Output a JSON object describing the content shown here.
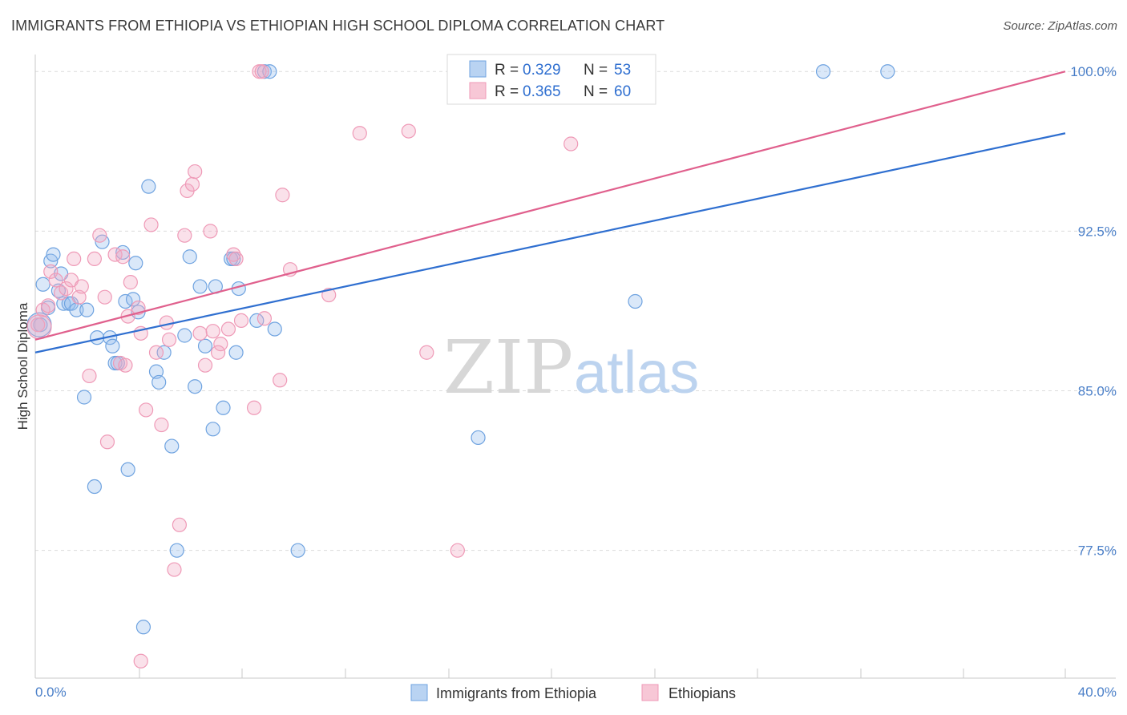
{
  "header": {
    "title": "IMMIGRANTS FROM ETHIOPIA VS ETHIOPIAN HIGH SCHOOL DIPLOMA CORRELATION CHART",
    "source": "Source: ZipAtlas.com"
  },
  "watermark": {
    "zip": "ZIP",
    "atlas": "atlas"
  },
  "legend": {
    "rows": [
      {
        "r_label": "R =",
        "r_value": "0.329",
        "n_label": "N =",
        "n_value": "53"
      },
      {
        "r_label": "R =",
        "r_value": "0.365",
        "n_label": "N =",
        "n_value": "60"
      }
    ]
  },
  "bottom_legend": [
    "Immigrants from Ethiopia",
    "Ethiopians"
  ],
  "chart_data": {
    "type": "scatter",
    "title": "IMMIGRANTS FROM ETHIOPIA VS ETHIOPIAN HIGH SCHOOL DIPLOMA CORRELATION CHART",
    "xlabel": "",
    "ylabel": "High School Diploma",
    "xlim": [
      0,
      40
    ],
    "ylim": [
      71.5,
      100.8
    ],
    "x_tick_labels": [
      "0.0%",
      "40.0%"
    ],
    "y_ticks": [
      77.5,
      85.0,
      92.5,
      100.0
    ],
    "y_tick_labels": [
      "77.5%",
      "85.0%",
      "92.5%",
      "100.0%"
    ],
    "grid": "horizontal dashed",
    "legend_position": "top-center",
    "colors": {
      "blue": "#6fa3e0",
      "pink": "#ef9ab7",
      "blue_line": "#2f6fd0",
      "pink_line": "#e0608d"
    },
    "series": [
      {
        "name": "Immigrants from Ethiopia",
        "color": "#6fa3e0",
        "trend": [
          [
            0,
            86.8
          ],
          [
            40,
            97.1
          ]
        ],
        "points": [
          [
            0.2,
            88.1
          ],
          [
            0.3,
            90.0
          ],
          [
            0.5,
            88.9
          ],
          [
            0.6,
            91.1
          ],
          [
            0.7,
            91.4
          ],
          [
            0.9,
            89.7
          ],
          [
            1.0,
            90.5
          ],
          [
            1.1,
            89.1
          ],
          [
            1.3,
            89.1
          ],
          [
            1.4,
            89.1
          ],
          [
            1.6,
            88.8
          ],
          [
            1.9,
            84.7
          ],
          [
            2.0,
            88.8
          ],
          [
            2.3,
            80.5
          ],
          [
            2.4,
            87.5
          ],
          [
            2.6,
            92.0
          ],
          [
            2.9,
            87.5
          ],
          [
            3.0,
            87.1
          ],
          [
            3.1,
            86.3
          ],
          [
            3.2,
            86.3
          ],
          [
            3.4,
            91.5
          ],
          [
            3.5,
            89.2
          ],
          [
            3.6,
            81.3
          ],
          [
            3.8,
            89.3
          ],
          [
            3.9,
            91.0
          ],
          [
            4.0,
            88.7
          ],
          [
            4.2,
            73.9
          ],
          [
            4.4,
            94.6
          ],
          [
            4.7,
            85.9
          ],
          [
            4.8,
            85.4
          ],
          [
            5.0,
            86.8
          ],
          [
            5.3,
            82.4
          ],
          [
            5.5,
            77.5
          ],
          [
            5.8,
            87.6
          ],
          [
            6.0,
            91.3
          ],
          [
            6.2,
            85.2
          ],
          [
            6.4,
            89.9
          ],
          [
            6.6,
            87.1
          ],
          [
            6.9,
            83.2
          ],
          [
            7.0,
            89.9
          ],
          [
            7.3,
            84.2
          ],
          [
            7.6,
            91.2
          ],
          [
            7.7,
            91.2
          ],
          [
            7.8,
            86.8
          ],
          [
            7.9,
            89.8
          ],
          [
            8.6,
            88.3
          ],
          [
            8.9,
            100.0
          ],
          [
            9.1,
            100.0
          ],
          [
            9.3,
            87.9
          ],
          [
            10.2,
            77.5
          ],
          [
            17.2,
            82.8
          ],
          [
            23.3,
            89.2
          ],
          [
            30.6,
            100.0
          ],
          [
            33.1,
            100.0
          ]
        ]
      },
      {
        "name": "Ethiopians",
        "color": "#ef9ab7",
        "trend": [
          [
            0,
            87.4
          ],
          [
            40,
            100.0
          ]
        ],
        "points": [
          [
            0.1,
            88.1
          ],
          [
            0.3,
            88.8
          ],
          [
            0.5,
            89.0
          ],
          [
            0.6,
            90.6
          ],
          [
            0.8,
            90.2
          ],
          [
            1.0,
            89.6
          ],
          [
            1.2,
            89.8
          ],
          [
            1.4,
            90.2
          ],
          [
            1.5,
            91.2
          ],
          [
            1.7,
            89.4
          ],
          [
            1.8,
            89.9
          ],
          [
            2.1,
            85.7
          ],
          [
            2.3,
            91.2
          ],
          [
            2.5,
            92.3
          ],
          [
            2.7,
            89.4
          ],
          [
            2.8,
            82.6
          ],
          [
            3.1,
            91.4
          ],
          [
            3.3,
            86.3
          ],
          [
            3.4,
            91.3
          ],
          [
            3.5,
            86.2
          ],
          [
            3.6,
            88.5
          ],
          [
            3.7,
            90.1
          ],
          [
            4.0,
            88.9
          ],
          [
            4.1,
            87.7
          ],
          [
            4.3,
            84.1
          ],
          [
            4.5,
            92.8
          ],
          [
            4.7,
            86.8
          ],
          [
            4.9,
            83.4
          ],
          [
            5.1,
            88.2
          ],
          [
            5.2,
            87.4
          ],
          [
            5.4,
            76.6
          ],
          [
            5.6,
            78.7
          ],
          [
            5.8,
            92.3
          ],
          [
            5.9,
            94.4
          ],
          [
            6.1,
            94.7
          ],
          [
            6.2,
            95.3
          ],
          [
            6.4,
            87.7
          ],
          [
            6.6,
            86.2
          ],
          [
            6.8,
            92.5
          ],
          [
            6.9,
            87.8
          ],
          [
            7.1,
            86.8
          ],
          [
            7.2,
            87.2
          ],
          [
            7.5,
            87.9
          ],
          [
            7.7,
            91.4
          ],
          [
            7.8,
            91.2
          ],
          [
            8.0,
            88.3
          ],
          [
            8.5,
            84.2
          ],
          [
            8.7,
            100.0
          ],
          [
            8.8,
            100.0
          ],
          [
            8.9,
            88.4
          ],
          [
            9.5,
            85.5
          ],
          [
            9.6,
            94.2
          ],
          [
            9.9,
            90.7
          ],
          [
            4.1,
            72.3
          ],
          [
            11.4,
            89.5
          ],
          [
            12.6,
            97.1
          ],
          [
            14.5,
            97.2
          ],
          [
            15.2,
            86.8
          ],
          [
            16.4,
            77.5
          ],
          [
            20.8,
            96.6
          ]
        ]
      }
    ]
  }
}
